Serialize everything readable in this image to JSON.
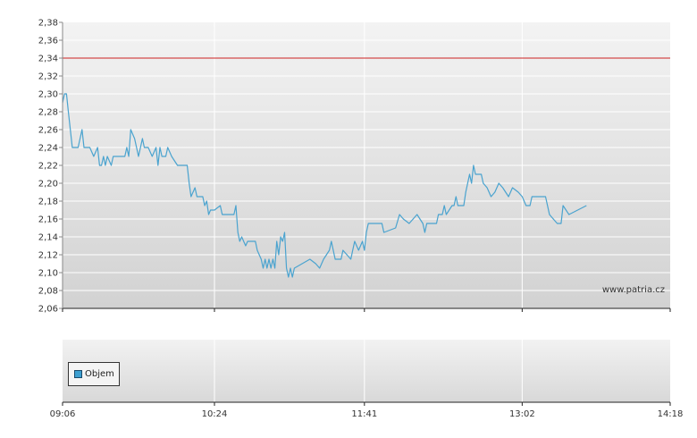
{
  "chart_data": [
    {
      "type": "line",
      "x_ticks": [
        "09:06",
        "10:24",
        "11:41",
        "13:02",
        "14:18"
      ],
      "y_ticks": [
        "2,38",
        "2,36",
        "2,34",
        "2,32",
        "2,30",
        "2,28",
        "2,26",
        "2,24",
        "2,22",
        "2,20",
        "2,18",
        "2,16",
        "2,14",
        "2,12",
        "2,10",
        "2,08",
        "2,06"
      ],
      "ylim": [
        2.06,
        2.38
      ],
      "xlim": [
        "09:06",
        "14:18"
      ],
      "reference_line": {
        "value": 2.34,
        "color": "#cc2222"
      },
      "grid": true,
      "watermark": "www.patria.cz",
      "series": [
        {
          "color": "#4aa3cf",
          "points": [
            [
              "09:06",
              2.29
            ],
            [
              "09:07",
              2.3
            ],
            [
              "09:08",
              2.3
            ],
            [
              "09:09",
              2.28
            ],
            [
              "09:10",
              2.26
            ],
            [
              "09:11",
              2.24
            ],
            [
              "09:12",
              2.24
            ],
            [
              "09:14",
              2.24
            ],
            [
              "09:16",
              2.26
            ],
            [
              "09:17",
              2.24
            ],
            [
              "09:20",
              2.24
            ],
            [
              "09:22",
              2.23
            ],
            [
              "09:24",
              2.24
            ],
            [
              "09:25",
              2.22
            ],
            [
              "09:26",
              2.22
            ],
            [
              "09:27",
              2.23
            ],
            [
              "09:28",
              2.22
            ],
            [
              "09:29",
              2.23
            ],
            [
              "09:31",
              2.22
            ],
            [
              "09:32",
              2.23
            ],
            [
              "09:38",
              2.23
            ],
            [
              "09:39",
              2.24
            ],
            [
              "09:40",
              2.23
            ],
            [
              "09:41",
              2.26
            ],
            [
              "09:43",
              2.25
            ],
            [
              "09:45",
              2.23
            ],
            [
              "09:47",
              2.25
            ],
            [
              "09:48",
              2.24
            ],
            [
              "09:50",
              2.24
            ],
            [
              "09:52",
              2.23
            ],
            [
              "09:54",
              2.24
            ],
            [
              "09:55",
              2.22
            ],
            [
              "09:56",
              2.24
            ],
            [
              "09:57",
              2.23
            ],
            [
              "09:59",
              2.23
            ],
            [
              "10:00",
              2.24
            ],
            [
              "10:02",
              2.23
            ],
            [
              "10:05",
              2.22
            ],
            [
              "10:10",
              2.22
            ],
            [
              "10:11",
              2.2
            ],
            [
              "10:12",
              2.185
            ],
            [
              "10:14",
              2.195
            ],
            [
              "10:15",
              2.185
            ],
            [
              "10:18",
              2.185
            ],
            [
              "10:19",
              2.175
            ],
            [
              "10:20",
              2.18
            ],
            [
              "10:21",
              2.165
            ],
            [
              "10:22",
              2.17
            ],
            [
              "10:24",
              2.17
            ],
            [
              "10:27",
              2.175
            ],
            [
              "10:28",
              2.165
            ],
            [
              "10:31",
              2.165
            ],
            [
              "10:34",
              2.165
            ],
            [
              "10:35",
              2.175
            ],
            [
              "10:36",
              2.145
            ],
            [
              "10:37",
              2.135
            ],
            [
              "10:38",
              2.14
            ],
            [
              "10:40",
              2.13
            ],
            [
              "10:41",
              2.135
            ],
            [
              "10:45",
              2.135
            ],
            [
              "10:46",
              2.125
            ],
            [
              "10:48",
              2.115
            ],
            [
              "10:49",
              2.105
            ],
            [
              "10:50",
              2.115
            ],
            [
              "10:51",
              2.105
            ],
            [
              "10:52",
              2.115
            ],
            [
              "10:53",
              2.105
            ],
            [
              "10:54",
              2.115
            ],
            [
              "10:55",
              2.105
            ],
            [
              "10:56",
              2.135
            ],
            [
              "10:57",
              2.12
            ],
            [
              "10:58",
              2.14
            ],
            [
              "10:59",
              2.135
            ],
            [
              "11:00",
              2.145
            ],
            [
              "11:01",
              2.105
            ],
            [
              "11:02",
              2.095
            ],
            [
              "11:03",
              2.105
            ],
            [
              "11:04",
              2.095
            ],
            [
              "11:05",
              2.105
            ],
            [
              "11:13",
              2.115
            ],
            [
              "11:16",
              2.11
            ],
            [
              "11:18",
              2.105
            ],
            [
              "11:20",
              2.115
            ],
            [
              "11:23",
              2.125
            ],
            [
              "11:24",
              2.135
            ],
            [
              "11:26",
              2.115
            ],
            [
              "11:29",
              2.115
            ],
            [
              "11:30",
              2.125
            ],
            [
              "11:34",
              2.115
            ],
            [
              "11:35",
              2.125
            ],
            [
              "11:36",
              2.135
            ],
            [
              "11:38",
              2.125
            ],
            [
              "11:40",
              2.135
            ],
            [
              "11:41",
              2.125
            ],
            [
              "11:42",
              2.145
            ],
            [
              "11:43",
              2.155
            ],
            [
              "11:44",
              2.155
            ],
            [
              "11:50",
              2.155
            ],
            [
              "11:51",
              2.145
            ],
            [
              "11:57",
              2.15
            ],
            [
              "11:59",
              2.165
            ],
            [
              "12:01",
              2.16
            ],
            [
              "12:04",
              2.155
            ],
            [
              "12:08",
              2.165
            ],
            [
              "12:11",
              2.155
            ],
            [
              "12:12",
              2.145
            ],
            [
              "12:13",
              2.155
            ],
            [
              "12:18",
              2.155
            ],
            [
              "12:19",
              2.165
            ],
            [
              "12:21",
              2.165
            ],
            [
              "12:22",
              2.175
            ],
            [
              "12:23",
              2.165
            ],
            [
              "12:26",
              2.175
            ],
            [
              "12:27",
              2.175
            ],
            [
              "12:28",
              2.185
            ],
            [
              "12:29",
              2.175
            ],
            [
              "12:32",
              2.175
            ],
            [
              "12:33",
              2.19
            ],
            [
              "12:35",
              2.21
            ],
            [
              "12:36",
              2.2
            ],
            [
              "12:37",
              2.22
            ],
            [
              "12:38",
              2.21
            ],
            [
              "12:41",
              2.21
            ],
            [
              "12:42",
              2.2
            ],
            [
              "12:44",
              2.195
            ],
            [
              "12:46",
              2.185
            ],
            [
              "12:48",
              2.19
            ],
            [
              "12:50",
              2.2
            ],
            [
              "12:52",
              2.195
            ],
            [
              "12:55",
              2.185
            ],
            [
              "12:57",
              2.195
            ],
            [
              "13:00",
              2.19
            ],
            [
              "13:02",
              2.185
            ],
            [
              "13:04",
              2.175
            ],
            [
              "13:06",
              2.175
            ],
            [
              "13:07",
              2.185
            ],
            [
              "13:14",
              2.185
            ],
            [
              "13:16",
              2.165
            ],
            [
              "13:18",
              2.16
            ],
            [
              "13:20",
              2.155
            ],
            [
              "13:22",
              2.155
            ],
            [
              "13:23",
              2.175
            ],
            [
              "13:26",
              2.165
            ],
            [
              "13:35",
              2.175
            ]
          ]
        }
      ]
    },
    {
      "type": "bar",
      "legend": [
        "Objem"
      ],
      "legend_color": "#3c9fd0",
      "x_ticks": [
        "09:06",
        "10:24",
        "11:41",
        "13:02",
        "14:18"
      ],
      "values": []
    }
  ]
}
